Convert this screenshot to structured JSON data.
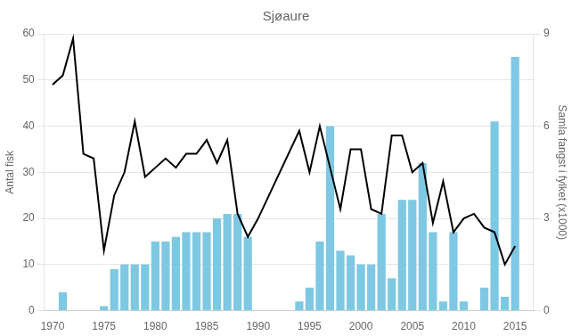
{
  "chart_data": {
    "type": "bar",
    "title": "Sjøaure",
    "ylabel": "Antal fisk",
    "y2label": "Samla fangst i fylket (x1000)",
    "xlim": [
      1969.2,
      2016.8
    ],
    "xticks": [
      1970,
      1975,
      1980,
      1985,
      1990,
      1995,
      2000,
      2005,
      2010,
      2015
    ],
    "ylim": [
      0,
      60
    ],
    "yticks": [
      0,
      10,
      20,
      30,
      40,
      50,
      60
    ],
    "y2lim": [
      0,
      9
    ],
    "y2ticks": [
      0,
      3,
      6,
      9
    ],
    "grid": true,
    "series": [
      {
        "type": "bar",
        "color": "#7EC8E3",
        "x": [
          1971,
          1972,
          1973,
          1974,
          1975,
          1976,
          1977,
          1978,
          1979,
          1980,
          1981,
          1982,
          1983,
          1984,
          1985,
          1986,
          1987,
          1988,
          1989,
          1994,
          1995,
          1996,
          1997,
          1998,
          1999,
          2000,
          2001,
          2002,
          2003,
          2004,
          2005,
          2006,
          2007,
          2008,
          2009,
          2010,
          2011,
          2012,
          2013,
          2014,
          2015
        ],
        "values": [
          4,
          0,
          0,
          0,
          1,
          9,
          10,
          10,
          10,
          15,
          15,
          16,
          17,
          17,
          17,
          20,
          21,
          21,
          16,
          2,
          5,
          15,
          40,
          13,
          12,
          10,
          10,
          21,
          7,
          24,
          24,
          32,
          17,
          2,
          17,
          2,
          0,
          5,
          41,
          3,
          55
        ]
      },
      {
        "type": "line",
        "color": "#000000",
        "x": [
          1970,
          1971,
          1972,
          1973,
          1974,
          1975,
          1976,
          1977,
          1978,
          1979,
          1980,
          1981,
          1982,
          1983,
          1984,
          1985,
          1986,
          1987,
          1988,
          1989,
          1990,
          1994,
          1995,
          1996,
          1997,
          1998,
          1999,
          2000,
          2001,
          2002,
          2003,
          2004,
          2005,
          2006,
          2007,
          2008,
          2009,
          2010,
          2011,
          2012,
          2013,
          2014,
          2015
        ],
        "values": [
          49,
          51,
          59,
          34,
          33,
          13,
          25,
          30,
          41,
          29,
          31,
          33,
          31,
          34,
          34,
          37,
          32,
          37,
          21,
          16,
          20,
          39,
          30,
          40,
          31,
          22,
          35,
          35,
          22,
          21,
          38,
          38,
          30,
          32,
          19,
          28,
          17,
          20,
          21,
          18,
          17,
          10,
          14
        ]
      }
    ]
  }
}
